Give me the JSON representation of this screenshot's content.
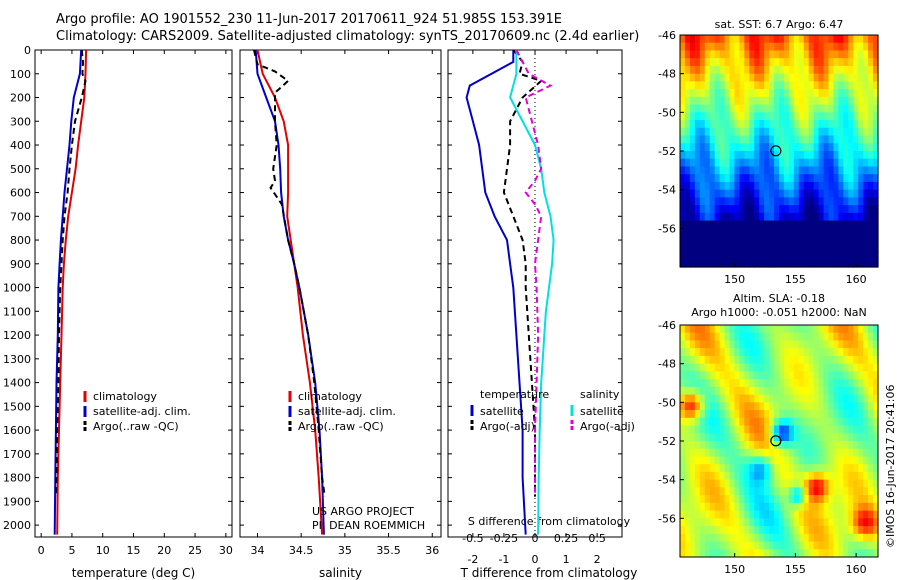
{
  "title": {
    "line1": "Argo profile: AO 1901552_230 11-Jun-2017 20170611_924 51.985S 153.391E",
    "line2": "Climatology: CARS2009. Satellite-adjusted climatology: synTS_20170609.nc (2.4d earlier)"
  },
  "credit": "©IMOS 16-Jun-2017 20:41:06",
  "colors": {
    "clim": "#e00000",
    "sat": "#0000cc",
    "argo": "#000000",
    "sat_s": "#00e0e0",
    "argo_s": "#e000e0"
  },
  "chart_data": [
    {
      "type": "line",
      "name": "temperature",
      "xlabel": "temperature (deg C)",
      "ylabel": "",
      "xlim": [
        -1,
        31
      ],
      "ylim": [
        2050,
        0
      ],
      "xticks": [
        0,
        5,
        10,
        15,
        20,
        25,
        30
      ],
      "yticks": [
        0,
        100,
        200,
        300,
        400,
        500,
        600,
        700,
        800,
        900,
        1000,
        1100,
        1200,
        1300,
        1400,
        1500,
        1600,
        1700,
        1800,
        1900,
        2000
      ],
      "legend": [
        "climatology",
        "satellite-adj. clim.",
        "Argo(..raw -QC)"
      ],
      "series": [
        {
          "name": "climatology",
          "key": "clim",
          "dash": false,
          "points": [
            [
              7.3,
              0
            ],
            [
              7.2,
              100
            ],
            [
              7.0,
              200
            ],
            [
              6.5,
              300
            ],
            [
              6.0,
              400
            ],
            [
              5.6,
              500
            ],
            [
              5.0,
              600
            ],
            [
              4.4,
              700
            ],
            [
              4.0,
              800
            ],
            [
              3.7,
              900
            ],
            [
              3.5,
              1000
            ],
            [
              3.3,
              1200
            ],
            [
              3.1,
              1400
            ],
            [
              2.9,
              1600
            ],
            [
              2.7,
              1800
            ],
            [
              2.6,
              2040
            ]
          ]
        },
        {
          "name": "satellite-adj. clim.",
          "key": "sat",
          "dash": false,
          "points": [
            [
              6.5,
              0
            ],
            [
              6.3,
              100
            ],
            [
              5.3,
              200
            ],
            [
              4.9,
              300
            ],
            [
              4.6,
              400
            ],
            [
              4.2,
              500
            ],
            [
              3.8,
              600
            ],
            [
              3.5,
              700
            ],
            [
              3.2,
              800
            ],
            [
              3.0,
              900
            ],
            [
              2.8,
              1000
            ],
            [
              2.7,
              1200
            ],
            [
              2.5,
              1400
            ],
            [
              2.4,
              1600
            ],
            [
              2.3,
              1800
            ],
            [
              2.2,
              2040
            ]
          ]
        },
        {
          "name": "Argo(..raw -QC)",
          "key": "argo",
          "dash": true,
          "points": [
            [
              6.6,
              0
            ],
            [
              6.8,
              50
            ],
            [
              6.7,
              100
            ],
            [
              7.2,
              130
            ],
            [
              6.6,
              200
            ],
            [
              5.5,
              300
            ],
            [
              5.0,
              400
            ],
            [
              4.6,
              500
            ],
            [
              4.3,
              600
            ],
            [
              3.8,
              700
            ],
            [
              3.5,
              800
            ],
            [
              3.3,
              900
            ],
            [
              3.1,
              1000
            ],
            [
              2.9,
              1200
            ],
            [
              2.8,
              1400
            ],
            [
              2.6,
              1600
            ],
            [
              2.5,
              1800
            ],
            [
              2.4,
              1880
            ]
          ]
        }
      ]
    },
    {
      "type": "line",
      "name": "salinity",
      "xlabel": "salinity",
      "ylabel": "",
      "xlim": [
        33.8,
        36.1
      ],
      "ylim": [
        2050,
        0
      ],
      "xticks": [
        34,
        34.5,
        35,
        35.5,
        36
      ],
      "xticklabels": [
        "34",
        "34.5",
        "35",
        "35.5",
        "36"
      ],
      "legend": [
        "climatology",
        "satellite-adj. clim.",
        "Argo(..raw -QC)"
      ],
      "annotation": [
        "US ARGO PROJECT",
        "PI: DEAN ROEMMICH"
      ],
      "series": [
        {
          "name": "climatology",
          "key": "clim",
          "dash": false,
          "points": [
            [
              34.0,
              0
            ],
            [
              34.06,
              100
            ],
            [
              34.2,
              200
            ],
            [
              34.3,
              300
            ],
            [
              34.35,
              400
            ],
            [
              34.35,
              500
            ],
            [
              34.35,
              600
            ],
            [
              34.34,
              700
            ],
            [
              34.38,
              800
            ],
            [
              34.42,
              900
            ],
            [
              34.46,
              1000
            ],
            [
              34.52,
              1200
            ],
            [
              34.6,
              1400
            ],
            [
              34.66,
              1600
            ],
            [
              34.7,
              1800
            ],
            [
              34.74,
              2040
            ]
          ]
        },
        {
          "name": "satellite-adj. clim.",
          "key": "sat",
          "dash": false,
          "points": [
            [
              33.98,
              0
            ],
            [
              34.0,
              100
            ],
            [
              34.1,
              200
            ],
            [
              34.2,
              300
            ],
            [
              34.24,
              400
            ],
            [
              34.26,
              500
            ],
            [
              34.27,
              600
            ],
            [
              34.3,
              700
            ],
            [
              34.35,
              800
            ],
            [
              34.42,
              900
            ],
            [
              34.48,
              1000
            ],
            [
              34.58,
              1200
            ],
            [
              34.66,
              1400
            ],
            [
              34.71,
              1600
            ],
            [
              34.74,
              1800
            ],
            [
              34.76,
              2040
            ]
          ]
        },
        {
          "name": "Argo(..raw -QC)",
          "key": "argo",
          "dash": true,
          "points": [
            [
              33.96,
              0
            ],
            [
              34.0,
              60
            ],
            [
              34.2,
              90
            ],
            [
              34.35,
              130
            ],
            [
              34.2,
              180
            ],
            [
              34.2,
              300
            ],
            [
              34.22,
              400
            ],
            [
              34.18,
              500
            ],
            [
              34.2,
              550
            ],
            [
              34.15,
              580
            ],
            [
              34.28,
              650
            ],
            [
              34.35,
              800
            ],
            [
              34.42,
              900
            ],
            [
              34.48,
              1000
            ],
            [
              34.58,
              1200
            ],
            [
              34.65,
              1400
            ],
            [
              34.7,
              1600
            ],
            [
              34.74,
              1800
            ],
            [
              34.77,
              1880
            ]
          ]
        }
      ]
    },
    {
      "type": "line",
      "name": "difference",
      "xlabel": "T difference from climatology",
      "xlabel_top": "S difference from climatology",
      "xlim": [
        -2.8,
        2.8
      ],
      "ylim": [
        2050,
        0
      ],
      "xticks": [
        -2,
        -1,
        0,
        1,
        2
      ],
      "xticks_s": [
        -0.5,
        -0.25,
        0,
        0.25,
        0.5
      ],
      "xticklabels_s": [
        "-0.5",
        "-0.25",
        "0",
        "0.25",
        "0.5"
      ],
      "legend_t": {
        "title": "temperature",
        "items": [
          "satellite",
          "Argo(-adj)"
        ]
      },
      "legend_s": {
        "title": "salinity",
        "items": [
          "satellite",
          "Argo(-adj)"
        ]
      },
      "series": [
        {
          "name": "T satellite",
          "key": "sat",
          "dash": false,
          "points": [
            [
              -0.7,
              0
            ],
            [
              -0.7,
              50
            ],
            [
              -2.1,
              150
            ],
            [
              -2.2,
              200
            ],
            [
              -2.0,
              300
            ],
            [
              -1.8,
              400
            ],
            [
              -1.7,
              500
            ],
            [
              -1.6,
              600
            ],
            [
              -1.3,
              700
            ],
            [
              -0.9,
              800
            ],
            [
              -0.8,
              900
            ],
            [
              -0.7,
              1000
            ],
            [
              -0.6,
              1200
            ],
            [
              -0.5,
              1400
            ],
            [
              -0.4,
              1600
            ],
            [
              -0.4,
              1800
            ],
            [
              -0.3,
              2040
            ]
          ]
        },
        {
          "name": "T Argo(-adj)",
          "key": "argo",
          "dash": true,
          "points": [
            [
              -0.7,
              0
            ],
            [
              -0.4,
              50
            ],
            [
              -0.5,
              100
            ],
            [
              0.2,
              130
            ],
            [
              -0.4,
              200
            ],
            [
              -0.8,
              300
            ],
            [
              -0.8,
              400
            ],
            [
              -0.9,
              500
            ],
            [
              -1.0,
              600
            ],
            [
              -0.7,
              700
            ],
            [
              -0.4,
              800
            ],
            [
              -0.3,
              900
            ],
            [
              -0.3,
              1000
            ],
            [
              -0.2,
              1200
            ],
            [
              -0.1,
              1400
            ],
            [
              0,
              1600
            ],
            [
              0,
              1800
            ],
            [
              0,
              1880
            ]
          ]
        },
        {
          "name": "S satellite",
          "key": "sat_s",
          "dash": false,
          "points": [
            [
              -0.6,
              0
            ],
            [
              -0.6,
              100
            ],
            [
              -0.8,
              200
            ],
            [
              -0.4,
              300
            ],
            [
              0.0,
              400
            ],
            [
              0.2,
              500
            ],
            [
              0.3,
              600
            ],
            [
              0.5,
              700
            ],
            [
              0.6,
              800
            ],
            [
              0.55,
              900
            ],
            [
              0.45,
              1000
            ],
            [
              0.35,
              1100
            ],
            [
              0.3,
              1200
            ],
            [
              0.25,
              1300
            ],
            [
              0.2,
              1400
            ],
            [
              0.15,
              1600
            ],
            [
              0.12,
              1800
            ],
            [
              0.1,
              2040
            ]
          ]
        },
        {
          "name": "S Argo(-adj)",
          "key": "argo_s",
          "dash": true,
          "points": [
            [
              -0.6,
              0
            ],
            [
              -0.2,
              100
            ],
            [
              0.5,
              150
            ],
            [
              -0.3,
              200
            ],
            [
              -0.1,
              300
            ],
            [
              0.1,
              400
            ],
            [
              0.2,
              500
            ],
            [
              0.0,
              550
            ],
            [
              -0.3,
              600
            ],
            [
              0.0,
              650
            ],
            [
              0.2,
              700
            ],
            [
              0.1,
              800
            ],
            [
              0.0,
              900
            ],
            [
              0.05,
              1000
            ],
            [
              0.1,
              1200
            ],
            [
              0.05,
              1400
            ],
            [
              0,
              1600
            ],
            [
              0,
              1800
            ],
            [
              0,
              1880
            ]
          ]
        }
      ]
    },
    {
      "type": "heatmap",
      "name": "sst-map",
      "title": "sat. SST: 6.7 Argo: 6.47",
      "xlim": [
        145.5,
        161.8
      ],
      "ylim": [
        -58,
        -46
      ],
      "xticks": [
        150,
        155,
        160
      ],
      "yticks": [
        -46,
        -48,
        -50,
        -52,
        -54,
        -56
      ],
      "marker": [
        153.39,
        -51.99
      ]
    },
    {
      "type": "heatmap",
      "name": "sla-map",
      "title_line1": "Altim. SLA: -0.18",
      "title_line2": "Argo h1000: -0.051 h2000: NaN",
      "xlim": [
        145.5,
        161.8
      ],
      "ylim": [
        -58,
        -46
      ],
      "xticks": [
        150,
        155,
        160
      ],
      "yticks": [
        -46,
        -48,
        -50,
        -52,
        -54,
        -56
      ],
      "marker": [
        153.39,
        -51.99
      ]
    }
  ]
}
